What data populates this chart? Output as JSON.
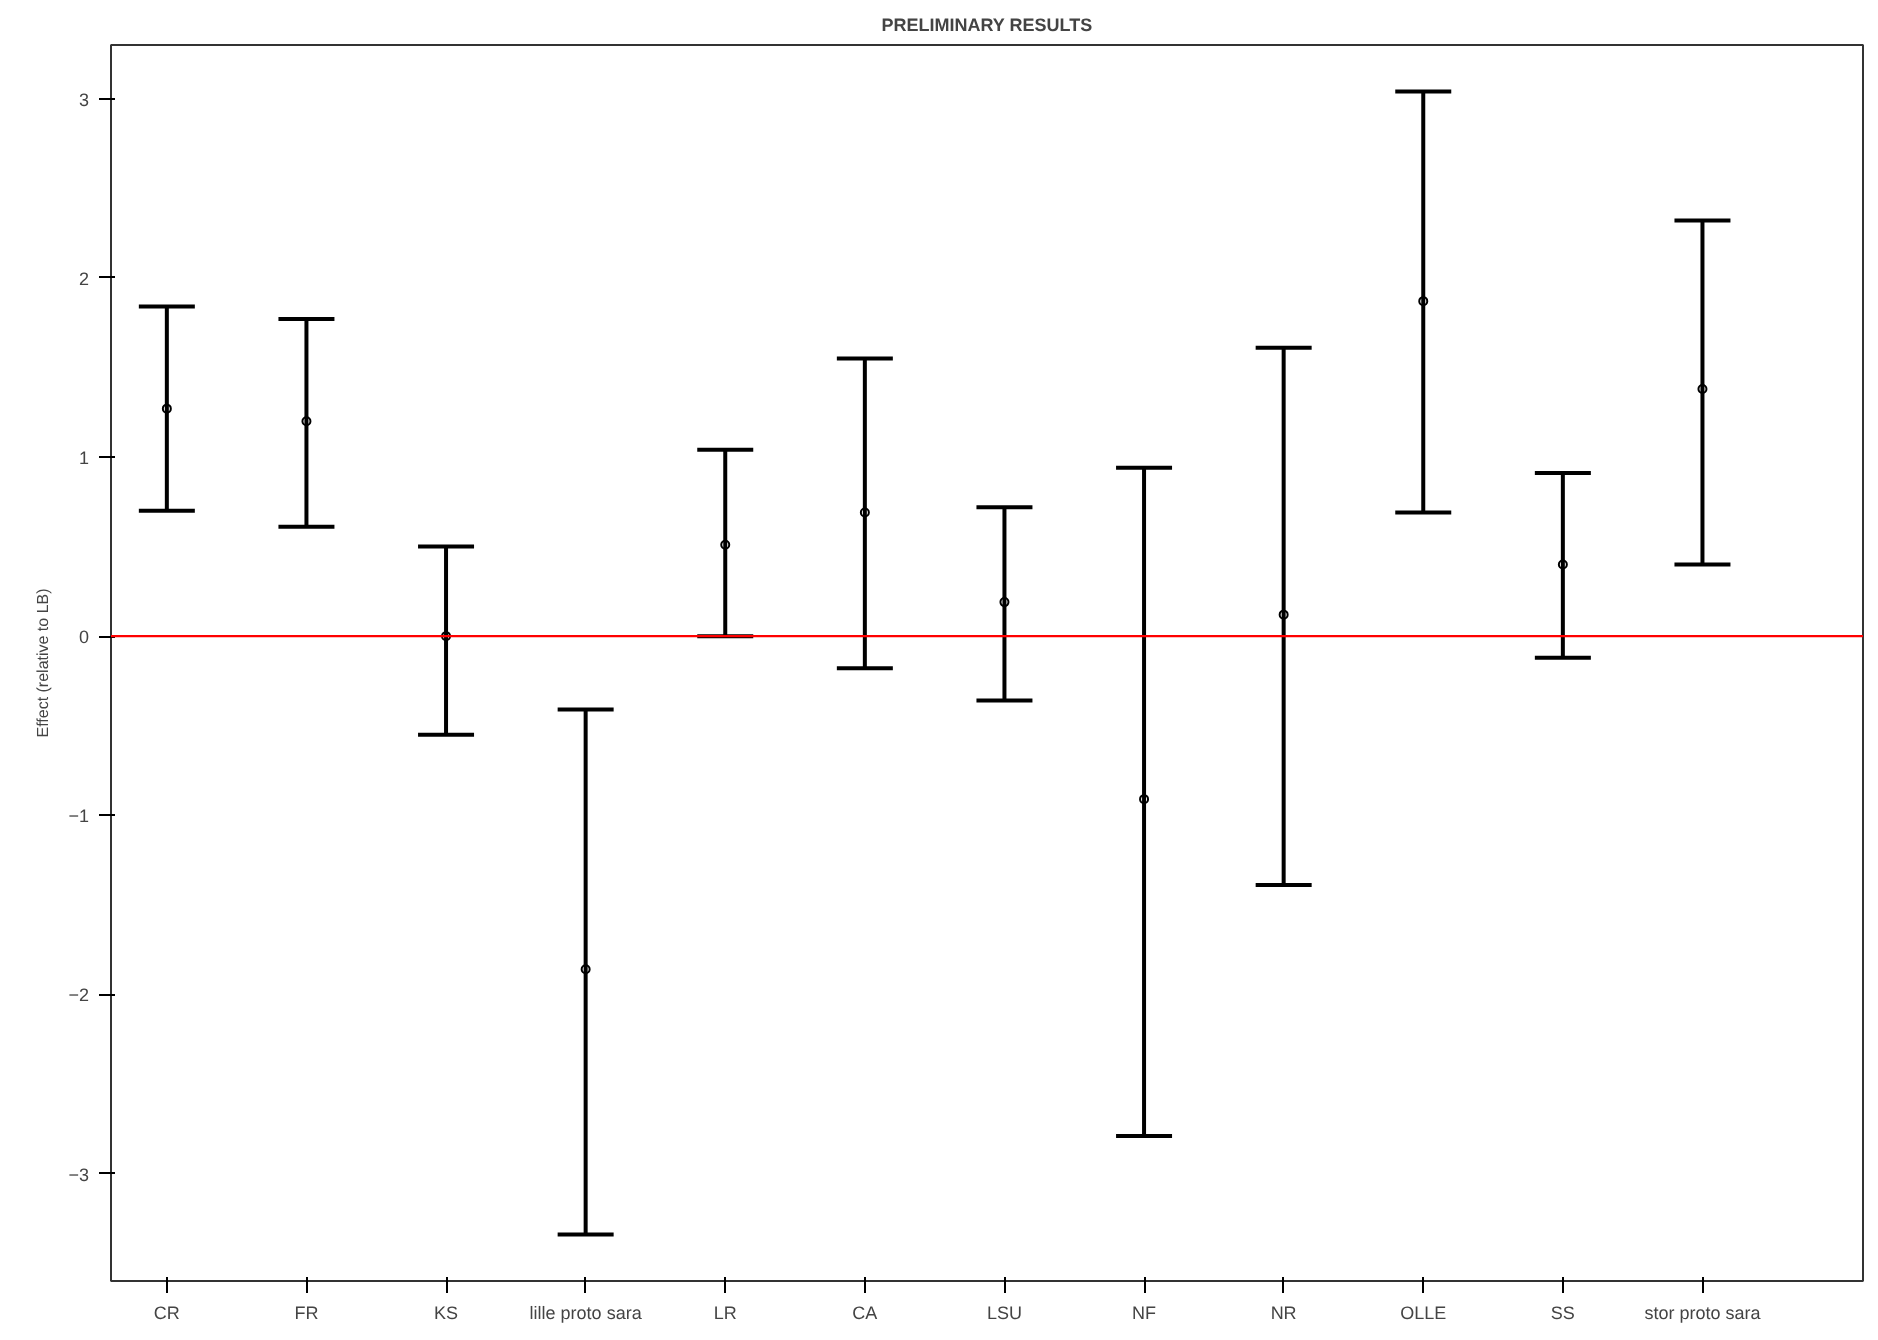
{
  "chart_data": {
    "type": "scatter",
    "title": "PRELIMINARY RESULTS",
    "ylabel": "Effect (relative to LB)",
    "categories": [
      "CR",
      "FR",
      "KS",
      "lille proto sara",
      "LR",
      "CA",
      "LSU",
      "NF",
      "NR",
      "OLLE",
      "SS",
      "stor proto sara"
    ],
    "values": [
      1.27,
      1.2,
      0.0,
      -1.86,
      0.51,
      0.69,
      0.19,
      -0.91,
      0.12,
      1.87,
      0.4,
      1.38
    ],
    "errors": [
      [
        0.7,
        1.84
      ],
      [
        0.61,
        1.77
      ],
      [
        -0.55,
        0.5
      ],
      [
        -3.34,
        -0.41
      ],
      [
        0.0,
        1.04
      ],
      [
        -0.18,
        1.55
      ],
      [
        -0.36,
        0.72
      ],
      [
        -2.79,
        0.94
      ],
      [
        -1.39,
        1.61
      ],
      [
        0.69,
        3.04
      ],
      [
        -0.12,
        0.91
      ],
      [
        0.4,
        2.32
      ]
    ],
    "color": "#000000",
    "marker": "circle",
    "grid": false,
    "ylim": [
      -3.6,
      3.3
    ],
    "yticks": [
      -3,
      -2,
      -1,
      0,
      1,
      2,
      3
    ],
    "ref_lines": [
      {
        "axis": "y",
        "value": 0,
        "label": null,
        "color": "#ff0000"
      }
    ]
  }
}
